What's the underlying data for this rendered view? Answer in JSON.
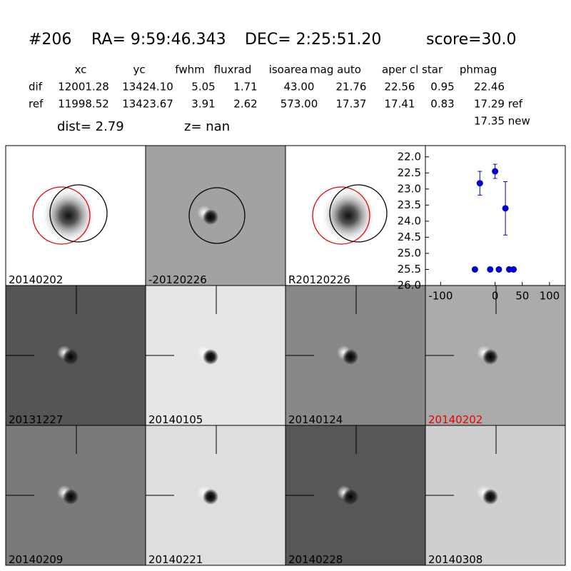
{
  "header": {
    "id": "#206",
    "ra": "RA= 9:59:46.343",
    "dec": "DEC= 2:25:51.20",
    "score": "score=30.0"
  },
  "table": {
    "columns": [
      "xc",
      "yc",
      "fwhm",
      "fluxrad",
      "isoarea",
      "mag auto",
      "aper",
      "cl star",
      "phmag"
    ],
    "rows": [
      [
        "dif",
        "12001.28",
        "13424.10",
        "5.05",
        "1.71",
        "43.00",
        "21.76",
        "22.56",
        "0.95",
        "22.46"
      ],
      [
        "ref",
        "11998.52",
        "13423.67",
        "3.91",
        "2.62",
        "573.00",
        "17.37",
        "17.41",
        "0.83",
        "17.29 ref"
      ]
    ],
    "extra": "17.35 new",
    "dist": "dist=  2.79",
    "z": "z=   nan"
  },
  "panels": [
    "20140202",
    "-20120226",
    "R20120226",
    "20131227",
    "20140105",
    "20140124",
    "20140202",
    "20140209",
    "20140221",
    "20140228",
    "20140308"
  ],
  "chart_data": {
    "type": "scatter",
    "x": [
      -37,
      -28,
      -9,
      0,
      7,
      19,
      26,
      34
    ],
    "values": [
      25.5,
      22.82,
      25.5,
      22.45,
      25.5,
      23.6,
      25.5,
      25.5
    ],
    "errors": [
      0,
      0.37,
      0,
      0.22,
      0,
      0.83,
      0,
      0
    ],
    "color": "#0000cc",
    "xlim": [
      -128,
      129
    ],
    "xticks": [
      -100,
      0,
      50,
      100
    ],
    "ylim": [
      26.0,
      21.65
    ],
    "yticks": [
      {
        "value": 22,
        "label": "22.0"
      },
      22.5,
      {
        "value": 23,
        "label": "23.0"
      },
      23.5,
      {
        "value": 24,
        "label": "24.0"
      },
      24.5,
      {
        "value": 25,
        "label": "25.0"
      },
      25.5,
      {
        "value": 26,
        "label": "26.0"
      }
    ]
  }
}
